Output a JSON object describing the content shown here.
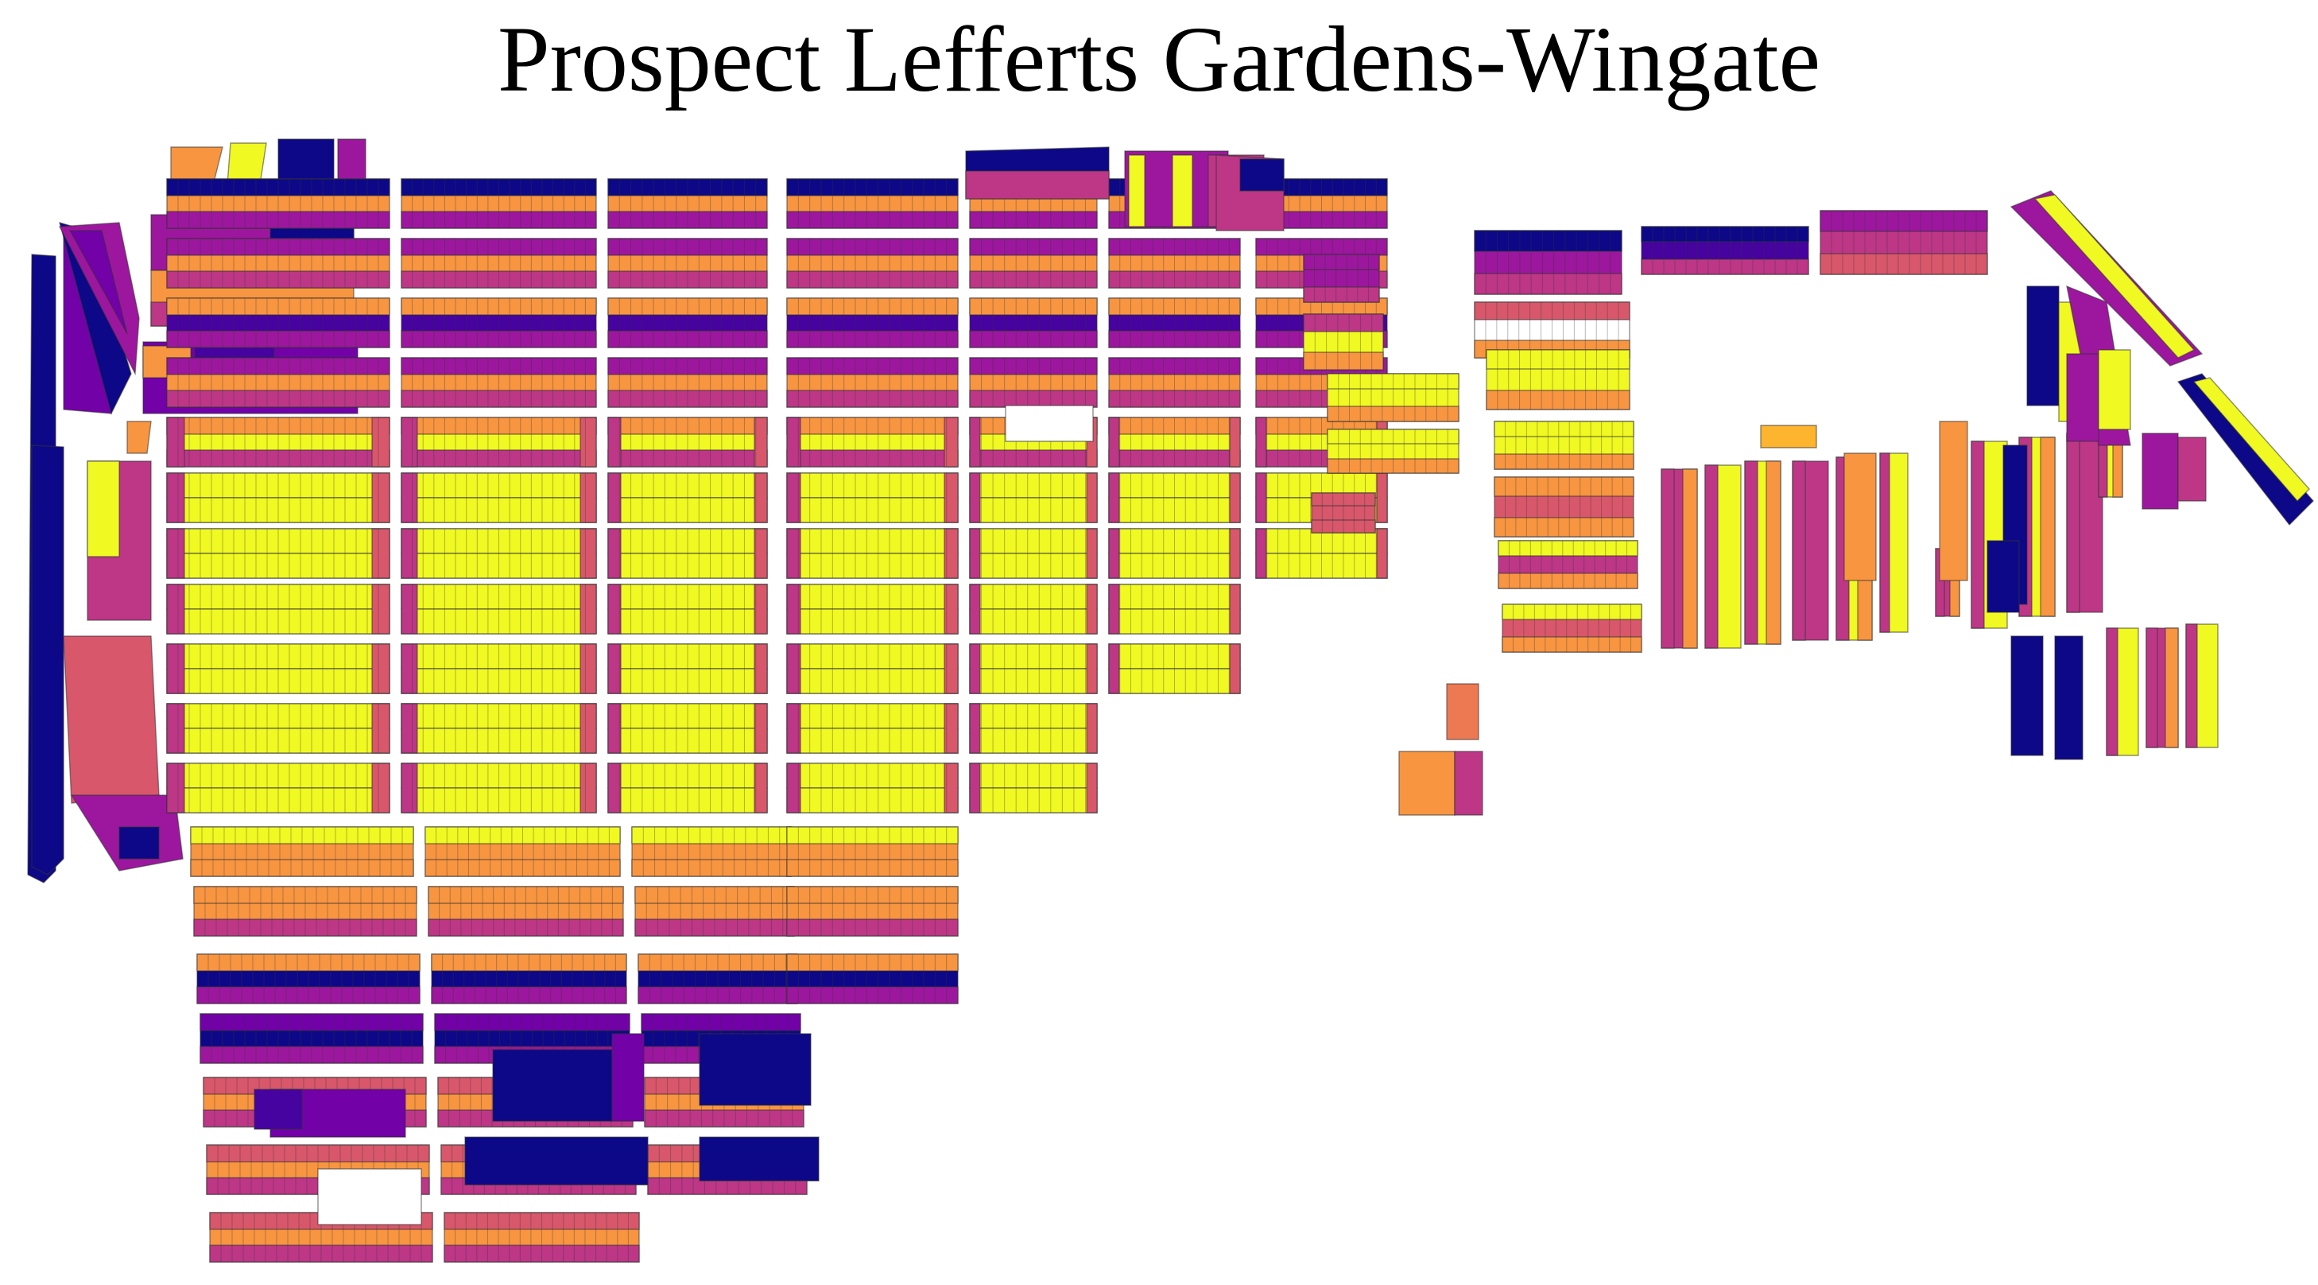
{
  "title": "Prospect Lefferts Gardens-Wingate",
  "colors": {
    "dark_blue": "#0d0887",
    "indigo": "#46039f",
    "violet": "#7201a8",
    "purple": "#9c179e",
    "magenta": "#bd3786",
    "rose": "#d8576b",
    "coral": "#ed7953",
    "orange": "#f89540",
    "amber": "#fdb42f",
    "yellow": "#f0f921"
  }
}
